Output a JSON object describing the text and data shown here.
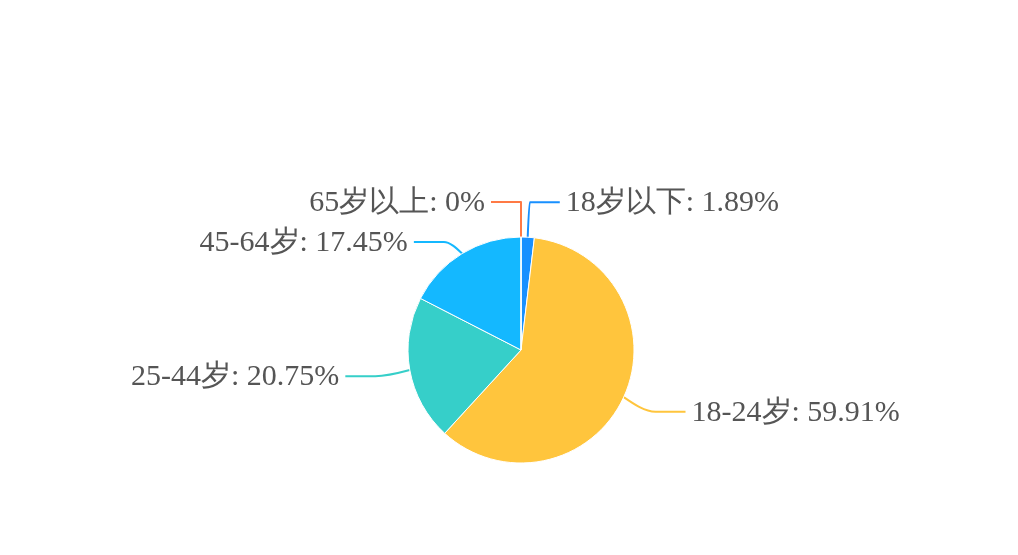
{
  "chart_data": {
    "type": "pie",
    "categories": [
      "18岁以下",
      "18-24岁",
      "25-44岁",
      "45-64岁",
      "65岁以上"
    ],
    "values": [
      1.89,
      59.91,
      20.75,
      17.45,
      0
    ],
    "value_labels": [
      ": 1.89%",
      ": 59.91%",
      ": 20.75%",
      ": 17.45%",
      ": 0%"
    ],
    "colors": [
      "#1890ff",
      "#ffc53d",
      "#36cfc9",
      "#14b8ff",
      "#ff7a45"
    ]
  }
}
